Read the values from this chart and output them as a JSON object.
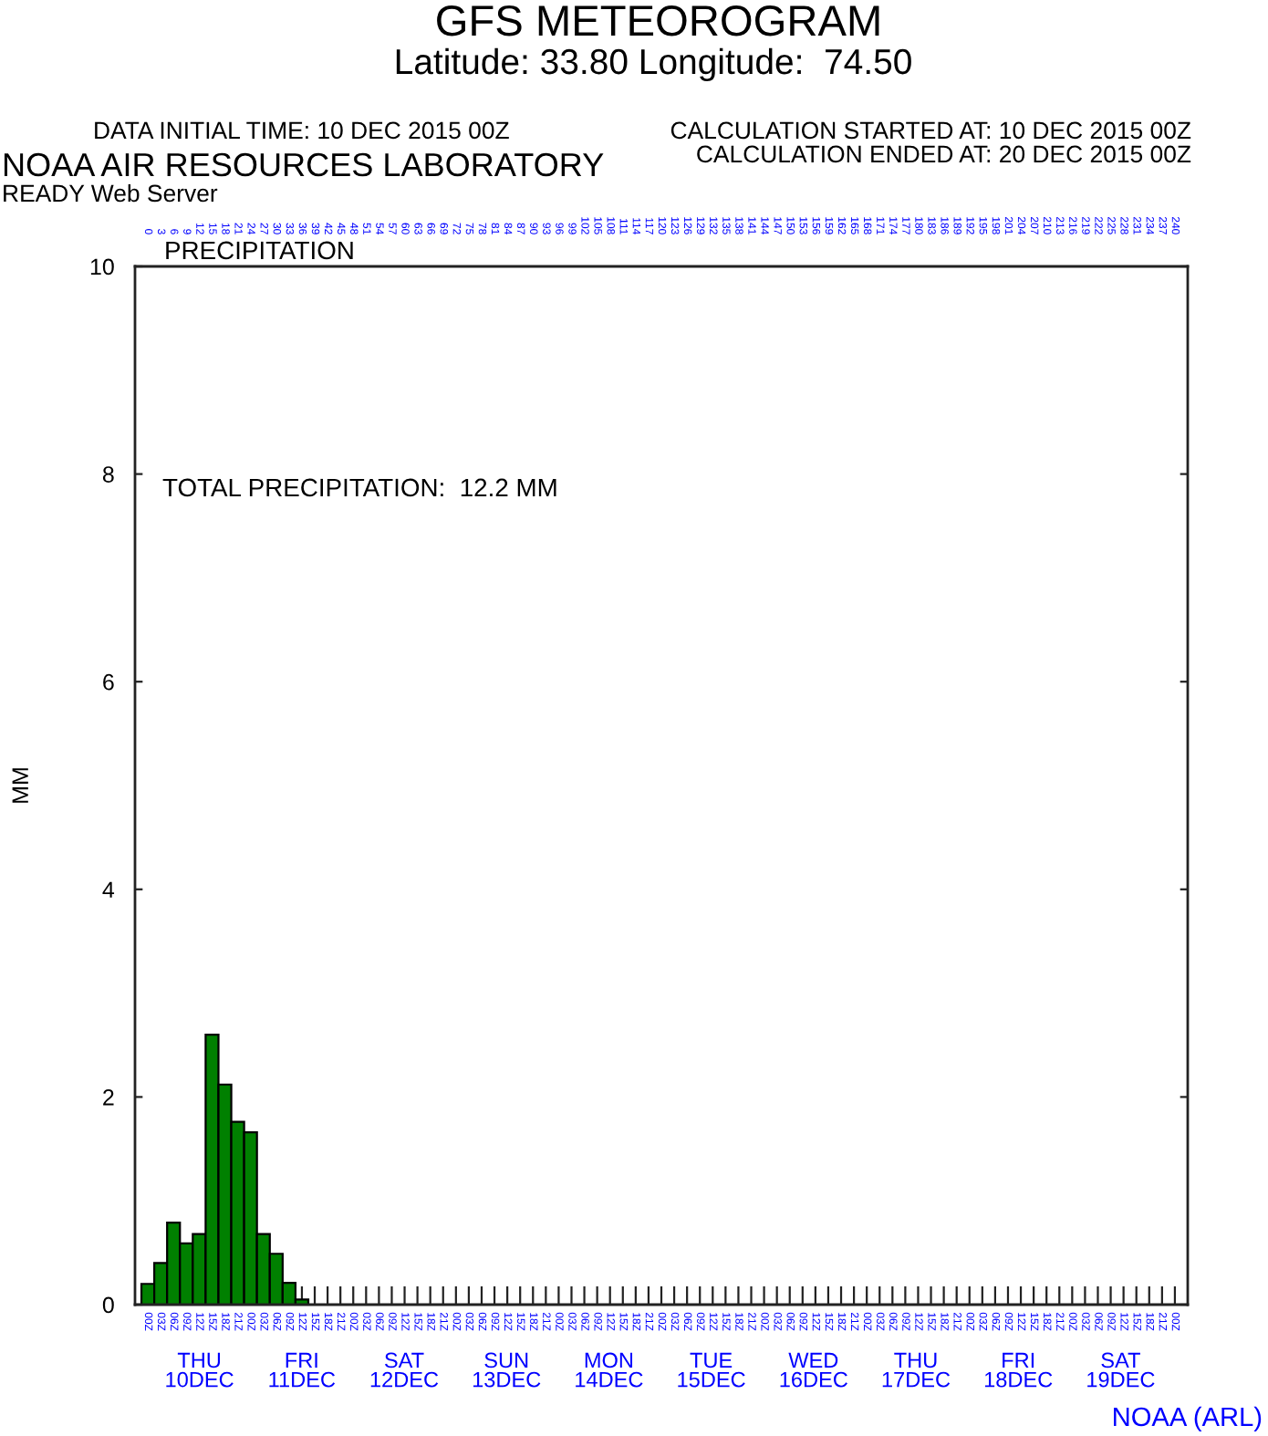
{
  "chart_data": {
    "type": "bar",
    "title": "GFS METEOROGRAM",
    "subtitle": "Latitude: 33.80 Longitude:  74.50",
    "ylabel": "MM",
    "x": [
      "2015-12-10T00:00",
      "2015-12-10T03:00",
      "2015-12-10T06:00",
      "2015-12-10T09:00",
      "2015-12-10T12:00",
      "2015-12-10T15:00",
      "2015-12-10T18:00",
      "2015-12-10T21:00",
      "2015-12-11T00:00",
      "2015-12-11T03:00",
      "2015-12-11T06:00",
      "2015-12-11T09:00",
      "2015-12-11T12:00"
    ],
    "values": [
      0.2,
      0.4,
      0.79,
      0.59,
      0.68,
      2.6,
      2.12,
      1.76,
      1.66,
      0.68,
      0.49,
      0.21,
      0.05
    ],
    "color": "#008000",
    "xlim": [
      "2015-12-09T21:00",
      "2015-12-20T03:00"
    ],
    "xticks": [
      {
        "value": "2015-12-10T00:00",
        "label": "00Z"
      },
      {
        "value": "2015-12-10T03:00",
        "label": "03Z"
      },
      {
        "value": "2015-12-10T06:00",
        "label": "06Z"
      },
      {
        "value": "2015-12-10T09:00",
        "label": "09Z"
      },
      {
        "value": "2015-12-10T12:00",
        "label": "12Z"
      },
      {
        "value": "2015-12-10T15:00",
        "label": "15Z"
      },
      {
        "value": "2015-12-10T18:00",
        "label": "18Z"
      },
      {
        "value": "2015-12-10T21:00",
        "label": "21Z"
      },
      {
        "value": "2015-12-11T00:00",
        "label": "00Z"
      },
      {
        "value": "2015-12-11T03:00",
        "label": "03Z"
      },
      {
        "value": "2015-12-11T06:00",
        "label": "06Z"
      },
      {
        "value": "2015-12-11T09:00",
        "label": "09Z"
      },
      {
        "value": "2015-12-11T12:00",
        "label": "12Z"
      },
      {
        "value": "2015-12-11T15:00",
        "label": "15Z"
      },
      {
        "value": "2015-12-11T18:00",
        "label": "18Z"
      },
      {
        "value": "2015-12-11T21:00",
        "label": "21Z"
      },
      {
        "value": "2015-12-12T00:00",
        "label": "00Z"
      },
      {
        "value": "2015-12-12T03:00",
        "label": "03Z"
      },
      {
        "value": "2015-12-12T06:00",
        "label": "06Z"
      },
      {
        "value": "2015-12-12T09:00",
        "label": "09Z"
      },
      {
        "value": "2015-12-12T12:00",
        "label": "12Z"
      },
      {
        "value": "2015-12-12T15:00",
        "label": "15Z"
      },
      {
        "value": "2015-12-12T18:00",
        "label": "18Z"
      },
      {
        "value": "2015-12-12T21:00",
        "label": "21Z"
      },
      {
        "value": "2015-12-13T00:00",
        "label": "00Z"
      },
      {
        "value": "2015-12-13T03:00",
        "label": "03Z"
      },
      {
        "value": "2015-12-13T06:00",
        "label": "06Z"
      },
      {
        "value": "2015-12-13T09:00",
        "label": "09Z"
      },
      {
        "value": "2015-12-13T12:00",
        "label": "12Z"
      },
      {
        "value": "2015-12-13T15:00",
        "label": "15Z"
      },
      {
        "value": "2015-12-13T18:00",
        "label": "18Z"
      },
      {
        "value": "2015-12-13T21:00",
        "label": "21Z"
      },
      {
        "value": "2015-12-14T00:00",
        "label": "00Z"
      },
      {
        "value": "2015-12-14T03:00",
        "label": "03Z"
      },
      {
        "value": "2015-12-14T06:00",
        "label": "06Z"
      },
      {
        "value": "2015-12-14T09:00",
        "label": "09Z"
      },
      {
        "value": "2015-12-14T12:00",
        "label": "12Z"
      },
      {
        "value": "2015-12-14T15:00",
        "label": "15Z"
      },
      {
        "value": "2015-12-14T18:00",
        "label": "18Z"
      },
      {
        "value": "2015-12-14T21:00",
        "label": "21Z"
      },
      {
        "value": "2015-12-15T00:00",
        "label": "00Z"
      },
      {
        "value": "2015-12-15T03:00",
        "label": "03Z"
      },
      {
        "value": "2015-12-15T06:00",
        "label": "06Z"
      },
      {
        "value": "2015-12-15T09:00",
        "label": "09Z"
      },
      {
        "value": "2015-12-15T12:00",
        "label": "12Z"
      },
      {
        "value": "2015-12-15T15:00",
        "label": "15Z"
      },
      {
        "value": "2015-12-15T18:00",
        "label": "18Z"
      },
      {
        "value": "2015-12-15T21:00",
        "label": "21Z"
      },
      {
        "value": "2015-12-16T00:00",
        "label": "00Z"
      },
      {
        "value": "2015-12-16T03:00",
        "label": "03Z"
      },
      {
        "value": "2015-12-16T06:00",
        "label": "06Z"
      },
      {
        "value": "2015-12-16T09:00",
        "label": "09Z"
      },
      {
        "value": "2015-12-16T12:00",
        "label": "12Z"
      },
      {
        "value": "2015-12-16T15:00",
        "label": "15Z"
      },
      {
        "value": "2015-12-16T18:00",
        "label": "18Z"
      },
      {
        "value": "2015-12-16T21:00",
        "label": "21Z"
      },
      {
        "value": "2015-12-17T00:00",
        "label": "00Z"
      },
      {
        "value": "2015-12-17T03:00",
        "label": "03Z"
      },
      {
        "value": "2015-12-17T06:00",
        "label": "06Z"
      },
      {
        "value": "2015-12-17T09:00",
        "label": "09Z"
      },
      {
        "value": "2015-12-17T12:00",
        "label": "12Z"
      },
      {
        "value": "2015-12-17T15:00",
        "label": "15Z"
      },
      {
        "value": "2015-12-17T18:00",
        "label": "18Z"
      },
      {
        "value": "2015-12-17T21:00",
        "label": "21Z"
      },
      {
        "value": "2015-12-18T00:00",
        "label": "00Z"
      },
      {
        "value": "2015-12-18T03:00",
        "label": "03Z"
      },
      {
        "value": "2015-12-18T06:00",
        "label": "06Z"
      },
      {
        "value": "2015-12-18T09:00",
        "label": "09Z"
      },
      {
        "value": "2015-12-18T12:00",
        "label": "12Z"
      },
      {
        "value": "2015-12-18T15:00",
        "label": "15Z"
      },
      {
        "value": "2015-12-18T18:00",
        "label": "18Z"
      },
      {
        "value": "2015-12-18T21:00",
        "label": "21Z"
      },
      {
        "value": "2015-12-19T00:00",
        "label": "00Z"
      },
      {
        "value": "2015-12-19T03:00",
        "label": "03Z"
      },
      {
        "value": "2015-12-19T06:00",
        "label": "06Z"
      },
      {
        "value": "2015-12-19T09:00",
        "label": "09Z"
      },
      {
        "value": "2015-12-19T12:00",
        "label": "12Z"
      },
      {
        "value": "2015-12-19T15:00",
        "label": "15Z"
      },
      {
        "value": "2015-12-19T18:00",
        "label": "18Z"
      },
      {
        "value": "2015-12-19T21:00",
        "label": "21Z"
      },
      {
        "value": "2015-12-20T00:00",
        "label": "00Z"
      }
    ],
    "x2lim": [
      -3,
      243
    ],
    "x2ticks": [
      0,
      3,
      6,
      9,
      12,
      15,
      18,
      21,
      24,
      27,
      30,
      33,
      36,
      39,
      42,
      45,
      48,
      51,
      54,
      57,
      60,
      63,
      66,
      69,
      72,
      75,
      78,
      81,
      84,
      87,
      90,
      93,
      96,
      99,
      102,
      105,
      108,
      111,
      114,
      117,
      120,
      123,
      126,
      129,
      132,
      135,
      138,
      141,
      144,
      147,
      150,
      153,
      156,
      159,
      162,
      165,
      168,
      171,
      174,
      177,
      180,
      183,
      186,
      189,
      192,
      195,
      198,
      201,
      204,
      207,
      210,
      213,
      216,
      219,
      222,
      225,
      228,
      231,
      234,
      237,
      240
    ],
    "ylim": [
      0,
      10
    ],
    "yticks": [
      0,
      2,
      4,
      6,
      8,
      10
    ],
    "annotations": [
      "PRECIPITATION",
      "TOTAL PRECIPITATION:  12.2 MM",
      "DATA INITIAL TIME: 10 DEC 2015 00Z",
      "CALCULATION STARTED AT: 10 DEC 2015 00Z",
      "CALCULATION ENDED AT: 20 DEC 2015 00Z",
      "NOAA AIR RESOURCES LABORATORY",
      "READY Web Server",
      "THU\n10DEC",
      "FRI\n11DEC",
      "SAT\n12DEC",
      "SUN\n13DEC",
      "MON\n14DEC",
      "TUE\n15DEC",
      "WED\n16DEC",
      "THU\n17DEC",
      "FRI\n18DEC",
      "SAT\n19DEC",
      "NOAA (ARL)"
    ]
  }
}
